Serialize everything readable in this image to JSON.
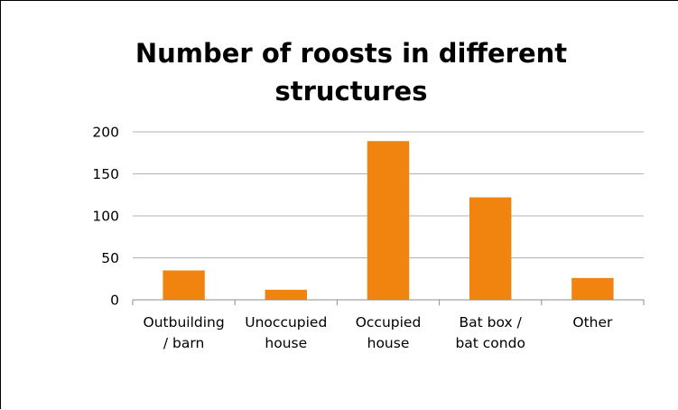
{
  "chart_data": {
    "type": "bar",
    "title_lines": [
      "Number of roosts in different",
      "structures"
    ],
    "categories": [
      [
        "Outbuilding",
        "/ barn"
      ],
      [
        "Unoccupied",
        "house"
      ],
      [
        "Occupied",
        "house"
      ],
      [
        "Bat box /",
        "bat condo"
      ],
      [
        "Other",
        ""
      ]
    ],
    "values": [
      35,
      12,
      189,
      122,
      26
    ],
    "ylim": [
      0,
      200
    ],
    "yticks": [
      0,
      50,
      100,
      150,
      200
    ],
    "grid": true,
    "legend": false,
    "xlabel": "",
    "ylabel": ""
  },
  "colors": {
    "bar": "#f0840e",
    "grid": "#b3b3b3",
    "axis": "#8c8c8c",
    "text": "#000000"
  }
}
